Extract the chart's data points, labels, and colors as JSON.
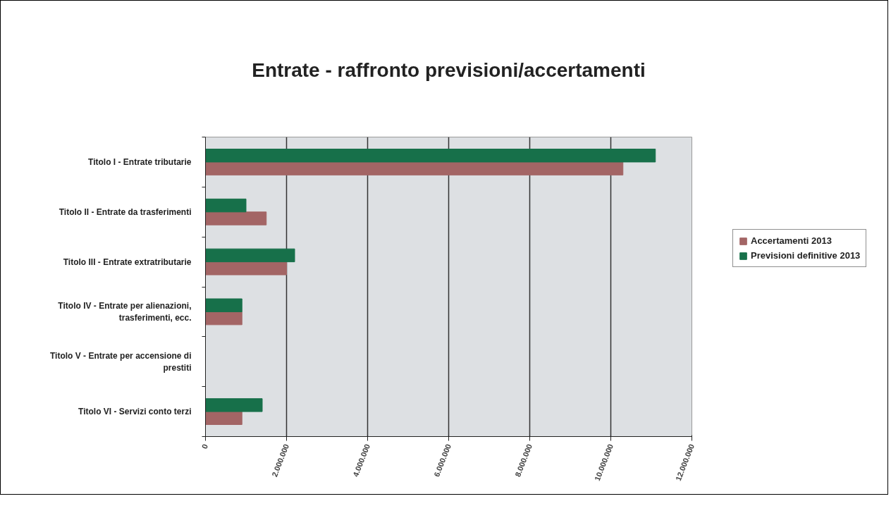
{
  "chart_data": {
    "type": "bar",
    "orientation": "horizontal",
    "title": "Entrate - raffronto previsioni/accertamenti",
    "categories": [
      "Titolo I - Entrate tributarie",
      "Titolo II - Entrate da trasferimenti",
      "Titolo III - Entrate extratributarie",
      "Titolo IV - Entrate per alienazioni, trasferimenti, ecc.",
      "Titolo V - Entrate per accensione di prestiti",
      "Titolo VI - Servizi conto terzi"
    ],
    "series": [
      {
        "name": "Accertamenti 2013",
        "color": "#a36565",
        "values": [
          10300000,
          1500000,
          2000000,
          900000,
          0,
          900000
        ]
      },
      {
        "name": "Previsioni definitive 2013",
        "color": "#17704a",
        "values": [
          11100000,
          1000000,
          2200000,
          900000,
          0,
          1400000
        ]
      }
    ],
    "xlim": [
      0,
      12000000
    ],
    "xticks": [
      0,
      {
        "value": 2000000,
        "label": "2.000.000"
      },
      {
        "value": 4000000,
        "label": "4.000.000"
      },
      {
        "value": 6000000,
        "label": "6.000.000"
      },
      {
        "value": 8000000,
        "label": "8.000.000"
      },
      {
        "value": 10000000,
        "label": "10.000.000"
      },
      {
        "value": 12000000,
        "label": "12.000.000"
      }
    ],
    "grid": "x",
    "legend": "right"
  }
}
